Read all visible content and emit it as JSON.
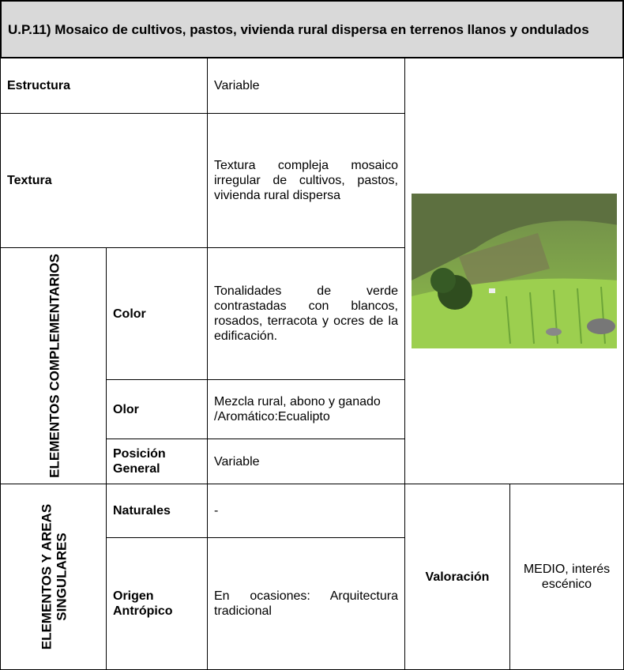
{
  "header": {
    "title": "U.P.11) Mosaico de cultivos, pastos, vivienda rural dispersa en terrenos llanos y ondulados"
  },
  "rows": [
    {
      "label": "Estructura",
      "value": "Variable"
    },
    {
      "label": "Textura",
      "value": "Textura compleja mosaico irregular de cultivos, pastos, vivienda rural dispersa"
    }
  ],
  "groups": [
    {
      "label": "ELEMENTOS COMPLEMENTARIOS",
      "rows": [
        {
          "label": "Color",
          "value": "Tonalidades de verde contrastadas con blancos, rosados, terracota y ocres de la edificación."
        },
        {
          "label": "Olor",
          "value": "Mezcla rural, abono y ganado /Aromático:Ecualipto"
        },
        {
          "label": "Posición General",
          "value": "Variable"
        }
      ]
    },
    {
      "label": "ELEMENTOS Y AREAS SINGULARES",
      "rows": [
        {
          "label": "Naturales",
          "value": "-"
        },
        {
          "label": "Origen Antrópico",
          "value": "En ocasiones: Arquitectura tradicional"
        }
      ]
    }
  ],
  "valoracion": {
    "label": "Valoración",
    "value": "MEDIO, interés escénico"
  }
}
